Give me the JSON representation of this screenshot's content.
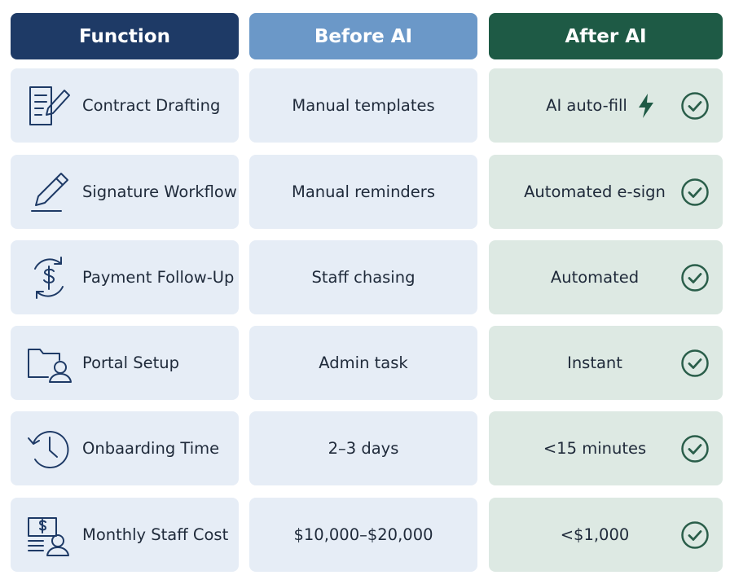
{
  "header": {
    "function": "Function",
    "before": "Before AI",
    "after": "After AI"
  },
  "rows": [
    {
      "function": "Contract Drafting",
      "before": "Manual templates",
      "after": "AI auto-fill"
    },
    {
      "function": "Signature Workflow",
      "before": "Manual reminders",
      "after": "Automated e-sign"
    },
    {
      "function": "Payment Follow-Up",
      "before": "Staff chasing",
      "after": "Automated"
    },
    {
      "function": "Portal Setup",
      "before": "Admin task",
      "after": "Instant"
    },
    {
      "function": "Onbaarding Time",
      "before": "2–3 days",
      "after": "<15 minutes"
    },
    {
      "function": "Monthly Staff Cost",
      "before": "$10,000–$20,000",
      "after": "<$1,000"
    }
  ]
}
